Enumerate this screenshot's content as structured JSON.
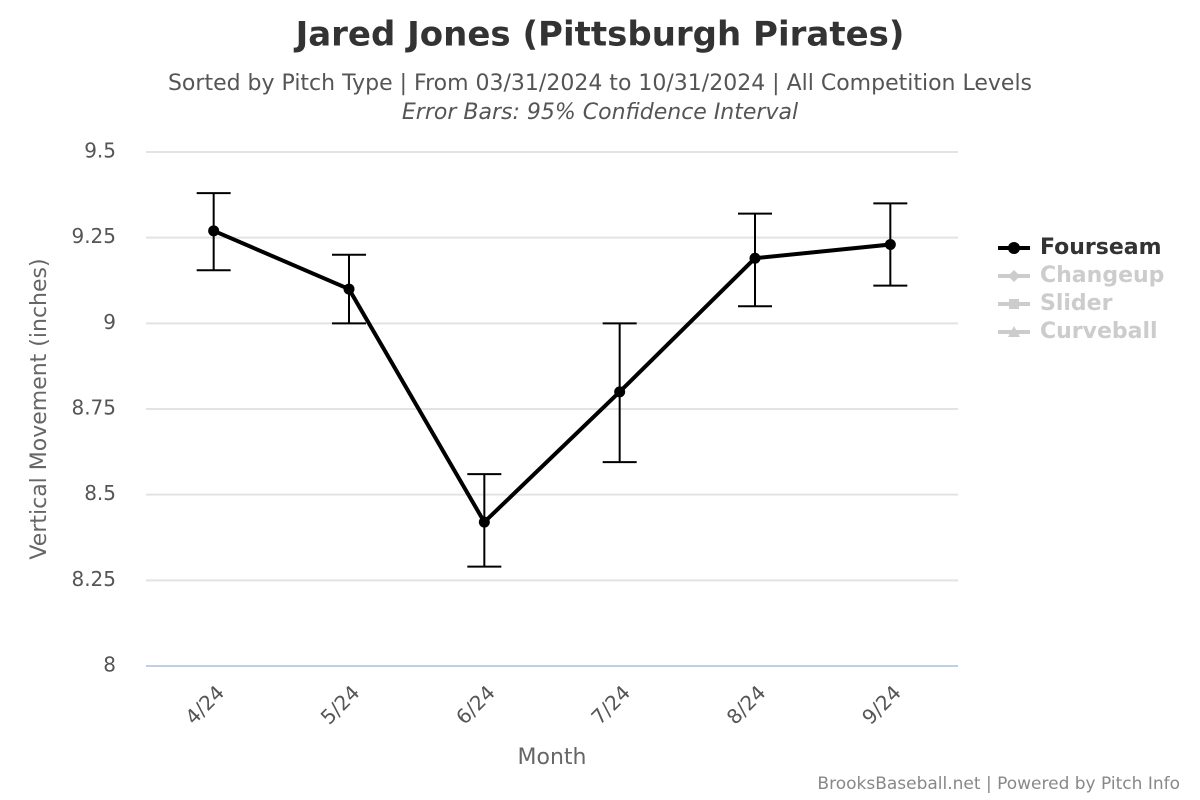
{
  "chart_data": {
    "type": "line",
    "title": "Jared Jones (Pittsburgh Pirates)",
    "subtitle": "Sorted by Pitch Type | From 03/31/2024 to 10/31/2024 | All Competition Levels",
    "note": "Error Bars: 95% Confidence Interval",
    "x_label": "Month",
    "y_label": "Vertical Movement (inches)",
    "credit": "BrooksBaseball.net | Powered by Pitch Info",
    "categories": [
      "4/24",
      "5/24",
      "6/24",
      "7/24",
      "8/24",
      "9/24"
    ],
    "series": [
      {
        "name": "Fourseam",
        "color": "#000000",
        "values": [
          9.27,
          9.1,
          8.42,
          8.8,
          9.19,
          9.23
        ],
        "ci_low": [
          9.155,
          9.0,
          8.29,
          8.595,
          9.05,
          9.11
        ],
        "ci_high": [
          9.38,
          9.2,
          8.56,
          9.0,
          9.32,
          9.35
        ]
      },
      {
        "name": "Changeup",
        "color": "#cccccc"
      },
      {
        "name": "Slider",
        "color": "#cccccc"
      },
      {
        "name": "Curveball",
        "color": "#cccccc"
      }
    ],
    "ylim": [
      8,
      9.5
    ],
    "yticks": [
      8,
      8.25,
      8.5,
      8.75,
      9,
      9.25,
      9.5
    ],
    "grid": true
  }
}
